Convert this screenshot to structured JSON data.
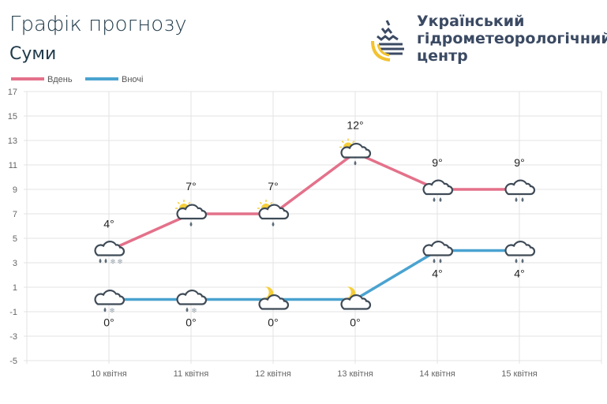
{
  "header": {
    "title": "Графік прогнозу",
    "city": "Суми"
  },
  "logo": {
    "lines": [
      "Український",
      "гідрометеорологічний",
      "центр"
    ]
  },
  "colors": {
    "day": "#e4718a",
    "night": "#4aa3d0",
    "grid": "#e3e3e3",
    "icon": "#3e4a56",
    "sun": "#f5cf3a",
    "drop": "#5c6b78",
    "flake": "#9aa5ae"
  },
  "chart_data": {
    "type": "line",
    "categories": [
      "10 квітня",
      "11 квітня",
      "12 квітня",
      "13 квітня",
      "14 квітня",
      "15 квітня"
    ],
    "ylim": [
      -5,
      17
    ],
    "yticks": [
      17,
      15,
      13,
      11,
      9,
      7,
      5,
      3,
      1,
      -1,
      -3,
      -5
    ],
    "grid": true,
    "legend": "top-left",
    "series": [
      {
        "name": "Вдень",
        "values": [
          4,
          7,
          7,
          12,
          9,
          9
        ],
        "labels": [
          "4°",
          "7°",
          "7°",
          "12°",
          "9°",
          "9°"
        ],
        "icons": [
          "cloud-rain-snow",
          "sun-cloud-rain",
          "sun-cloud-rain",
          "sun-cloud-rain",
          "cloud-rain",
          "cloud-rain"
        ]
      },
      {
        "name": "Вночі",
        "values": [
          0,
          0,
          0,
          0,
          4,
          4
        ],
        "labels": [
          "0°",
          "0°",
          "0°",
          "0°",
          "4°",
          "4°"
        ],
        "icons": [
          "cloud-rain-snow-light",
          "cloud-rain-snow-light",
          "moon-cloud",
          "moon-cloud",
          "cloud-rain",
          "cloud-rain"
        ]
      }
    ]
  }
}
